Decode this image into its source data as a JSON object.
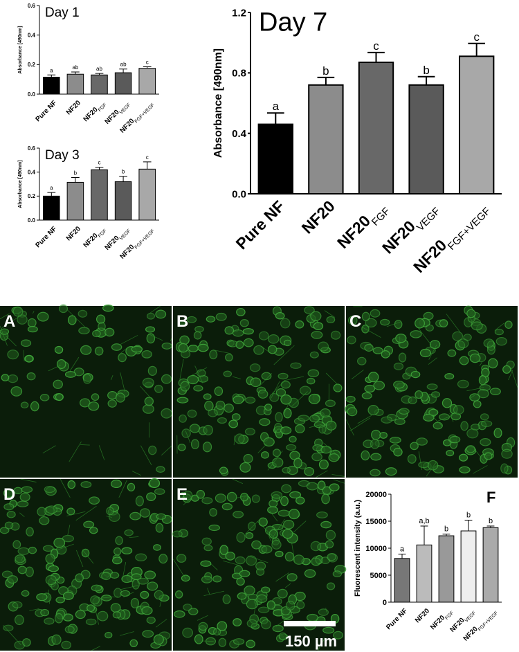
{
  "chart_data": [
    {
      "type": "bar",
      "title": "Day 1",
      "ylabel": "Absorbance [490nm]",
      "categories": [
        "Pure NF",
        "NF20",
        "NF20",
        "NF20",
        "NF20"
      ],
      "category_subscripts": [
        null,
        null,
        "FGF",
        "VEGF",
        "FGF+VEGF"
      ],
      "values": [
        0.115,
        0.135,
        0.13,
        0.145,
        0.175
      ],
      "errors": [
        0.015,
        0.015,
        0.01,
        0.025,
        0.01
      ],
      "significance_letters": [
        "a",
        "ab",
        "ab",
        "ab",
        "c"
      ],
      "colors": [
        "#000000",
        "#8c8c8c",
        "#686868",
        "#5a5a5a",
        "#a8a8a8"
      ],
      "ylim": [
        0,
        0.6
      ],
      "yticks": [
        {
          "value": 0,
          "label": "0.0"
        },
        0.2,
        0.4,
        0.6
      ]
    },
    {
      "type": "bar",
      "title": "Day 3",
      "ylabel": "Absorbance [490nm]",
      "categories": [
        "Pure NF",
        "NF20",
        "NF20",
        "NF20",
        "NF20"
      ],
      "category_subscripts": [
        null,
        null,
        "FGF",
        "VEGF",
        "FGF+VEGF"
      ],
      "values": [
        0.2,
        0.315,
        0.42,
        0.32,
        0.425
      ],
      "errors": [
        0.03,
        0.04,
        0.02,
        0.045,
        0.06
      ],
      "significance_letters": [
        "a",
        "b",
        "c",
        "b",
        "c"
      ],
      "colors": [
        "#000000",
        "#8c8c8c",
        "#686868",
        "#5a5a5a",
        "#a8a8a8"
      ],
      "ylim": [
        0,
        0.6
      ],
      "yticks": [
        {
          "value": 0,
          "label": "0.0"
        },
        0.2,
        0.4,
        0.6
      ]
    },
    {
      "type": "bar",
      "title": "Day 7",
      "ylabel": "Absorbance [490nm]",
      "categories": [
        "Pure NF",
        "NF20",
        "NF20",
        "NF20",
        "NF20"
      ],
      "category_subscripts": [
        null,
        null,
        "FGF",
        "VEGF",
        "FGF+VEGF"
      ],
      "values": [
        0.46,
        0.72,
        0.87,
        0.72,
        0.91
      ],
      "errors": [
        0.075,
        0.05,
        0.065,
        0.055,
        0.085
      ],
      "significance_letters": [
        "a",
        "b",
        "c",
        "b",
        "c"
      ],
      "colors": [
        "#000000",
        "#8c8c8c",
        "#686868",
        "#5a5a5a",
        "#a8a8a8"
      ],
      "ylim": [
        0,
        1.2
      ],
      "yticks": [
        {
          "value": 0,
          "label": "0.0"
        },
        0.4,
        0.8,
        1.2
      ]
    },
    {
      "type": "bar",
      "panel_label": "F",
      "ylabel": "Fluorescent intensity (a.u.)",
      "categories": [
        "Pure NF",
        "NF20",
        "NF20",
        "NF20",
        "NF20"
      ],
      "category_subscripts": [
        null,
        null,
        "FGF",
        "VEGF",
        "FGF+VEGF"
      ],
      "values": [
        8100,
        10600,
        12300,
        13200,
        13800
      ],
      "errors": [
        800,
        3500,
        300,
        2000,
        300
      ],
      "significance_letters": [
        "a",
        "a,b",
        "b",
        "b",
        "b"
      ],
      "colors": [
        "#777777",
        "#bbbbbb",
        "#999999",
        "#eeeeee",
        "#aaaaaa"
      ],
      "ylim": [
        0,
        20000
      ],
      "yticks": [
        0,
        5000,
        10000,
        15000,
        20000
      ]
    }
  ],
  "panels": {
    "labels": [
      "A",
      "B",
      "C",
      "D",
      "E"
    ],
    "scale_bar": "150 µm"
  }
}
